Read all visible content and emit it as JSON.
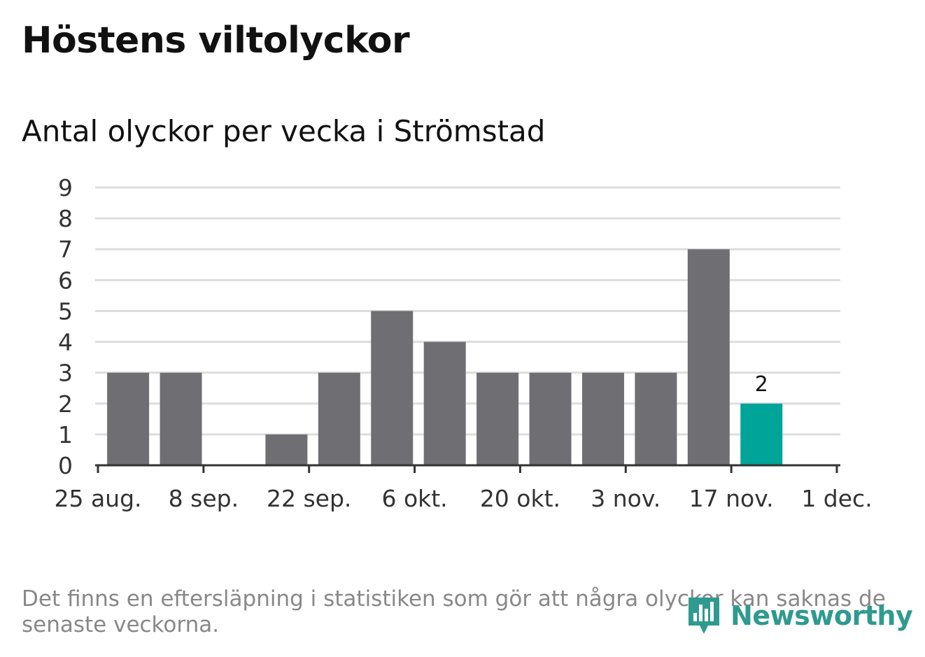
{
  "header": {
    "title": "Höstens viltolyckor",
    "subtitle": "Antal olyckor per vecka i Strömstad"
  },
  "footer": {
    "note": "Det finns en eftersläpning i statistiken som gör att några olyckor kan saknas de senaste veckorna.",
    "brand": "Newsworthy"
  },
  "colors": {
    "bar": "#6f6e73",
    "highlight": "#00a499",
    "grid": "#dddddd",
    "axis": "#333333",
    "brand": "#2f9a8f"
  },
  "icons": {
    "brand_logo": "bar-chart-badge-icon"
  },
  "chart_data": {
    "type": "bar",
    "title": "Antal olyckor per vecka i Strömstad",
    "xlabel": "",
    "ylabel": "",
    "ylim": [
      0,
      9
    ],
    "yticks": [
      0,
      1,
      2,
      3,
      4,
      5,
      6,
      7,
      8,
      9
    ],
    "grid": true,
    "xticks": [
      {
        "label": "25 aug.",
        "date": "2019-08-25"
      },
      {
        "label": "8 sep.",
        "date": "2019-09-08"
      },
      {
        "label": "22 sep.",
        "date": "2019-09-22"
      },
      {
        "label": "6 okt.",
        "date": "2019-10-06"
      },
      {
        "label": "20 okt.",
        "date": "2019-10-20"
      },
      {
        "label": "3 nov.",
        "date": "2019-11-03"
      },
      {
        "label": "17 nov.",
        "date": "2019-11-17"
      },
      {
        "label": "1 dec.",
        "date": "2019-12-01"
      }
    ],
    "weeks": [
      "2019-08-26",
      "2019-09-02",
      "2019-09-09",
      "2019-09-16",
      "2019-09-23",
      "2019-09-30",
      "2019-10-07",
      "2019-10-14",
      "2019-10-21",
      "2019-10-28",
      "2019-11-04",
      "2019-11-11",
      "2019-11-18"
    ],
    "values": [
      3,
      3,
      0,
      1,
      3,
      5,
      4,
      3,
      3,
      3,
      3,
      7,
      2
    ],
    "highlight_index": 12,
    "data_labels": [
      {
        "index": 12,
        "text": "2"
      }
    ]
  }
}
